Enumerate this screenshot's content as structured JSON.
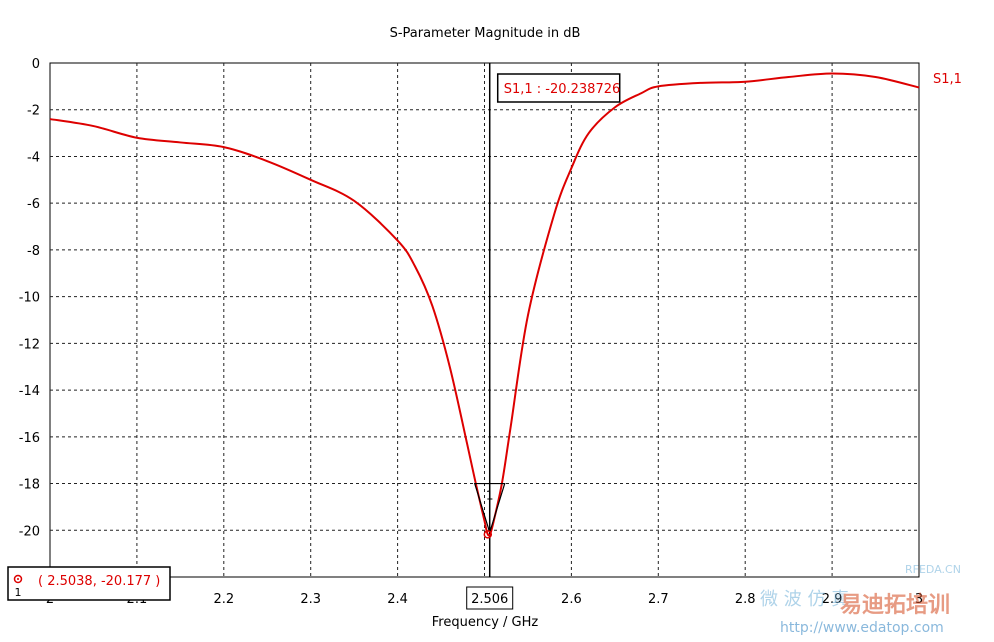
{
  "chart_data": {
    "type": "line",
    "title": "S-Parameter Magnitude in dB",
    "xlabel": "Frequency / GHz",
    "ylabel": "",
    "xlim": [
      2.0,
      3.0
    ],
    "ylim": [
      -22,
      0
    ],
    "grid": true,
    "x_ticks": [
      "2",
      "2.1",
      "2.2",
      "2.3",
      "2.4",
      "2.5",
      "2.6",
      "2.7",
      "2.8",
      "2.9",
      "3"
    ],
    "y_ticks": [
      "0",
      "-2",
      "-4",
      "-6",
      "-8",
      "-10",
      "-12",
      "-14",
      "-16",
      "-18",
      "-20"
    ],
    "legend_position": "top-right",
    "series": [
      {
        "name": "S1,1",
        "color": "#dd0000",
        "x": [
          2.0,
          2.05,
          2.1,
          2.15,
          2.2,
          2.25,
          2.3,
          2.35,
          2.4,
          2.42,
          2.44,
          2.46,
          2.48,
          2.49,
          2.5,
          2.503,
          2.506,
          2.51,
          2.52,
          2.53,
          2.55,
          2.58,
          2.6,
          2.62,
          2.65,
          2.68,
          2.7,
          2.75,
          2.8,
          2.85,
          2.9,
          2.95,
          3.0
        ],
        "y": [
          -2.4,
          -2.7,
          -3.2,
          -3.4,
          -3.6,
          -4.2,
          -5.0,
          -5.9,
          -7.6,
          -8.7,
          -10.4,
          -13.0,
          -16.3,
          -18.0,
          -19.6,
          -20.1,
          -20.2,
          -19.7,
          -18.0,
          -15.6,
          -10.8,
          -6.5,
          -4.5,
          -3.0,
          -1.9,
          -1.3,
          -1.0,
          -0.85,
          -0.8,
          -0.6,
          -0.45,
          -0.6,
          -1.05
        ]
      }
    ],
    "annotations": {
      "marker_frequency": 2.506,
      "marker_label": "S1,1 : -20.238726",
      "marker_id": "1",
      "min_point_label": "( 2.5038, -20.177 )",
      "min_point": {
        "x": 2.5038,
        "y": -20.177
      },
      "min_point_id": "1"
    }
  },
  "watermark": {
    "lines": [
      "易迪拓培训",
      "RFEDA.CN",
      "http://www.edatop.com",
      "微 波 仿 真"
    ]
  }
}
